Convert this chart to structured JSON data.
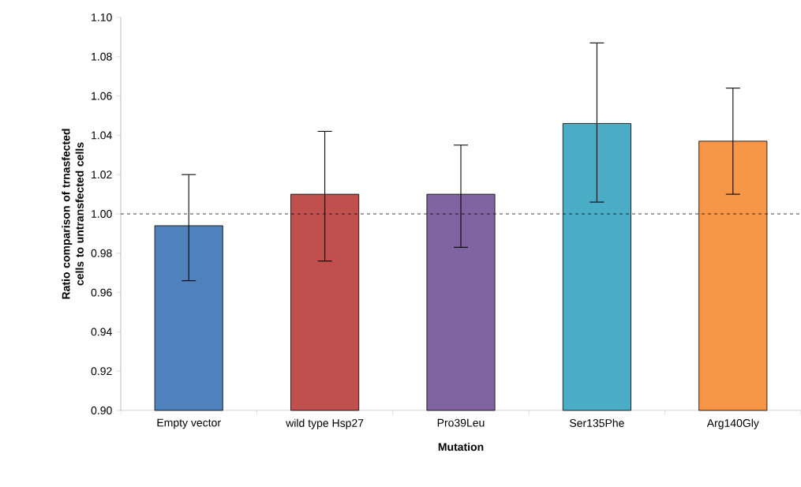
{
  "chart_data": {
    "type": "bar",
    "xlabel": "Mutation",
    "ylabel": "Ratio comparison of trnasfected cells to untransfected cells",
    "categories": [
      "Empty vector",
      "wild type Hsp27",
      "Pro39Leu",
      "Ser135Phe",
      "Arg140Gly"
    ],
    "values": [
      0.994,
      1.01,
      1.01,
      1.046,
      1.037
    ],
    "colors": [
      "#4f81bd",
      "#c0504d",
      "#8064a2",
      "#4bacc6",
      "#f79646"
    ],
    "errors": [
      [
        0.966,
        1.02
      ],
      [
        0.976,
        1.042
      ],
      [
        0.983,
        1.035
      ],
      [
        1.006,
        1.087
      ],
      [
        1.01,
        1.064
      ]
    ],
    "ylim": [
      0.9,
      1.1
    ],
    "yticks": [
      {
        "value": 0.9,
        "label": "0.90"
      },
      {
        "value": 0.92,
        "label": "0.92"
      },
      {
        "value": 0.94,
        "label": "0.94"
      },
      {
        "value": 0.96,
        "label": "0.96"
      },
      {
        "value": 0.98,
        "label": "0.98"
      },
      {
        "value": 1.0,
        "label": "1.00"
      },
      {
        "value": 1.02,
        "label": "1.02"
      },
      {
        "value": 1.04,
        "label": "1.04"
      },
      {
        "value": 1.06,
        "label": "1.06"
      },
      {
        "value": 1.08,
        "label": "1.08"
      },
      {
        "value": 1.1,
        "label": "1.10"
      }
    ],
    "ref_lines": [
      {
        "axis": "y",
        "value": 1.0,
        "color": "#000000",
        "line_style": "dashed"
      }
    ],
    "grid": false
  }
}
